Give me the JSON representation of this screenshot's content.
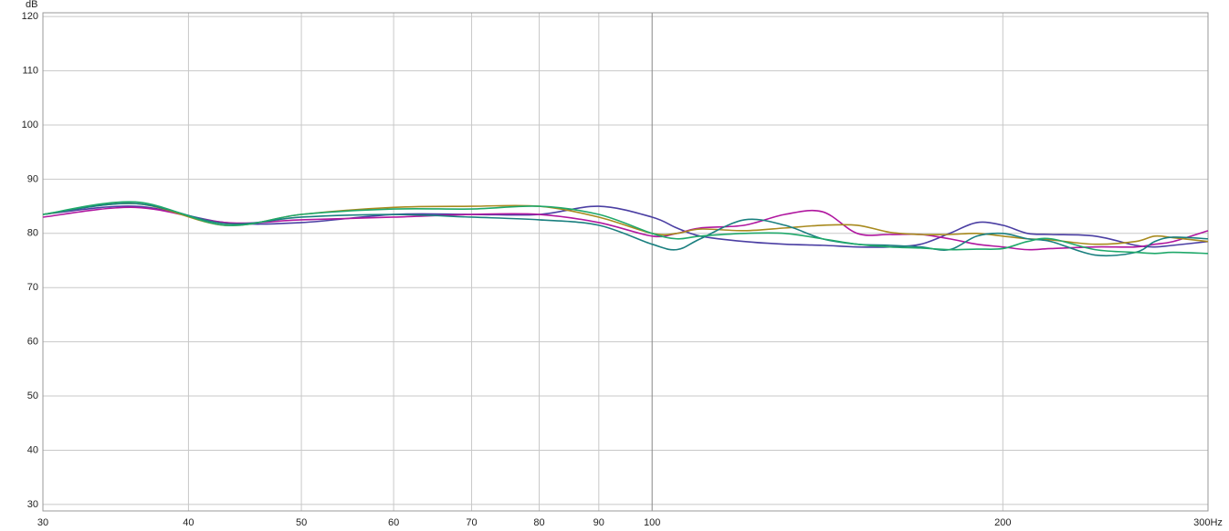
{
  "chart_data": {
    "type": "line",
    "y_label": "dB",
    "xscale": "log",
    "grid": true,
    "x": [
      30,
      36,
      43,
      50,
      60,
      70,
      80,
      90,
      100,
      105,
      110,
      120,
      130,
      140,
      150,
      160,
      170,
      180,
      190,
      200,
      210,
      220,
      240,
      260,
      270,
      280,
      300
    ],
    "series": [
      {
        "color": "#4b3fa3",
        "values": [
          83.5,
          85,
          82,
          82,
          83.5,
          83.5,
          83.5,
          85,
          83,
          81,
          79.5,
          78.5,
          78,
          77.8,
          77.5,
          77.5,
          78,
          80,
          82,
          81.5,
          80,
          79.8,
          79.5,
          77.8,
          77.5,
          77.8,
          78.5
        ]
      },
      {
        "color": "#b0179f",
        "values": [
          83,
          84.8,
          82,
          82.5,
          83,
          83.5,
          83.5,
          82,
          79.5,
          80,
          81,
          81.5,
          83.5,
          84,
          80,
          79.8,
          79.8,
          79,
          78,
          77.5,
          77,
          77.2,
          77.5,
          77.5,
          78,
          78.5,
          80.5
        ]
      },
      {
        "color": "#a88a1e",
        "values": [
          83.5,
          85.5,
          81.5,
          83.5,
          84.8,
          85,
          85,
          83,
          80,
          80,
          80.8,
          80.5,
          81,
          81.5,
          81.5,
          80.2,
          79.8,
          79.8,
          80,
          79.5,
          79,
          78.8,
          78,
          78.5,
          79.5,
          79.2,
          78.5
        ]
      },
      {
        "color": "#1a7f7f",
        "values": [
          83.5,
          85.5,
          81.8,
          83,
          83.5,
          83,
          82.5,
          81.5,
          78,
          77,
          79,
          82.5,
          81.5,
          79,
          78,
          77.8,
          77.5,
          77,
          79.5,
          80,
          79,
          78.5,
          76,
          76.5,
          78.5,
          79.3,
          79
        ]
      },
      {
        "color": "#1fa86a",
        "values": [
          83.5,
          85.8,
          81.5,
          83.5,
          84.5,
          84.5,
          85,
          83.5,
          80,
          79,
          79.5,
          80,
          80,
          79,
          78,
          77.5,
          77.3,
          77,
          77.1,
          77.2,
          78.5,
          79,
          77,
          76.5,
          76.3,
          76.5,
          76.3
        ]
      }
    ],
    "xlim": [
      30,
      300
    ],
    "xticks": [
      30,
      40,
      50,
      60,
      70,
      80,
      90,
      100,
      200,
      {
        "value": 300,
        "label": "300Hz"
      }
    ],
    "ylim": [
      28.8,
      120.7
    ],
    "yticks": [
      30,
      40,
      50,
      60,
      70,
      80,
      90,
      100,
      110,
      120
    ]
  }
}
